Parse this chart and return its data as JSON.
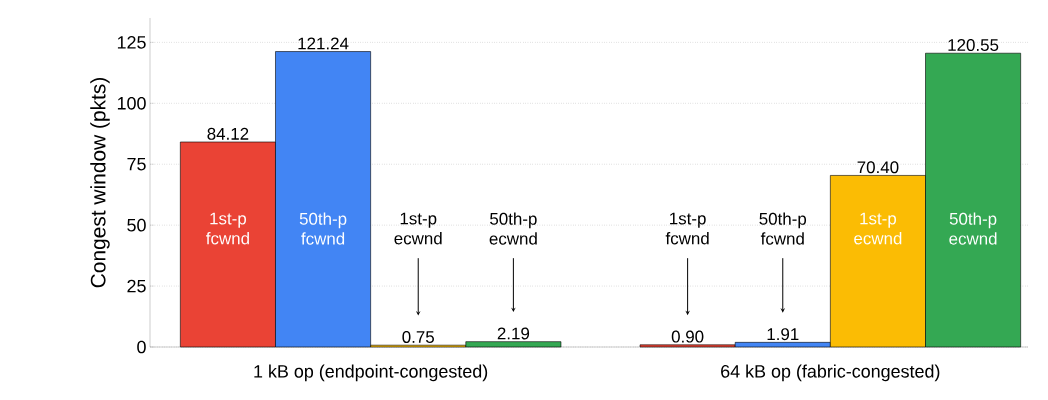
{
  "chart_data": {
    "type": "bar",
    "ylabel": "Congest window (pkts)",
    "categories": [
      "1 kB op (endpoint-congested)",
      "64 kB op (fabric-congested)"
    ],
    "series": [
      {
        "name": "1st-p fcwnd",
        "color": "#ea4335",
        "values": [
          84.12,
          0.9
        ],
        "value_labels": [
          "84.12",
          "0.90"
        ]
      },
      {
        "name": "50th-p fcwnd",
        "color": "#4285f4",
        "values": [
          121.24,
          1.91
        ],
        "value_labels": [
          "121.24",
          "1.91"
        ]
      },
      {
        "name": "1st-p ecwnd",
        "color": "#fbbc04",
        "values": [
          0.75,
          70.4
        ],
        "value_labels": [
          "0.75",
          "70.40"
        ]
      },
      {
        "name": "50th-p ecwnd",
        "color": "#34a853",
        "values": [
          2.19,
          120.55
        ],
        "value_labels": [
          "2.19",
          "120.55"
        ]
      }
    ],
    "ylim": [
      0,
      135
    ],
    "yticks": [
      0,
      25,
      50,
      75,
      100,
      125
    ],
    "grid": "y"
  }
}
